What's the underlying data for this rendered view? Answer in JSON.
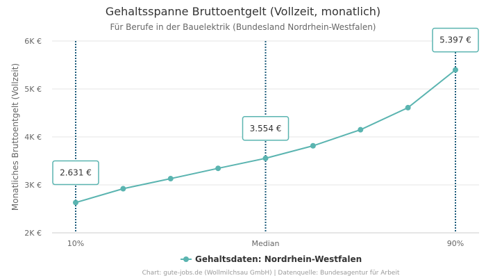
{
  "chart_data": {
    "type": "line",
    "title": "Gehaltsspanne Bruttoentgelt (Vollzeit, monatlich)",
    "subtitle": "Für Berufe in der Bauelektrik (Bundesland Nordrhein-Westfalen)",
    "ylabel": "Monatliches Bruttoentgelt (Vollzeit)",
    "ylim": [
      2000,
      6000
    ],
    "yticks": [
      2000,
      3000,
      4000,
      5000,
      6000
    ],
    "ytick_labels": [
      "2K €",
      "3K €",
      "4K €",
      "5K €",
      "6K €"
    ],
    "x": [
      10,
      20,
      30,
      40,
      50,
      60,
      70,
      80,
      90
    ],
    "xlim": [
      10,
      90
    ],
    "xticks": [
      {
        "x": 10,
        "label": "10%"
      },
      {
        "x": 50,
        "label": "Median"
      },
      {
        "x": 90,
        "label": "90%"
      }
    ],
    "series": [
      {
        "name": "Gehaltsdaten: Nordrhein-Westfalen",
        "color": "#5ab4b0",
        "values": [
          2631,
          2920,
          3130,
          3345,
          3554,
          3815,
          4150,
          4610,
          5397
        ]
      }
    ],
    "markers": [
      {
        "x": 10,
        "value": 2631,
        "label": "2.631 €"
      },
      {
        "x": 50,
        "value": 3554,
        "label": "3.554 €"
      },
      {
        "x": 90,
        "value": 5397,
        "label": "5.397 €"
      }
    ],
    "marker_line_color": "#1a5a7a",
    "grid": true,
    "legend_position": "bottom-center",
    "credits": "Chart: gute-jobs.de (Wollmilchsau GmbH) | Datenquelle: Bundesagentur für Arbeit"
  }
}
